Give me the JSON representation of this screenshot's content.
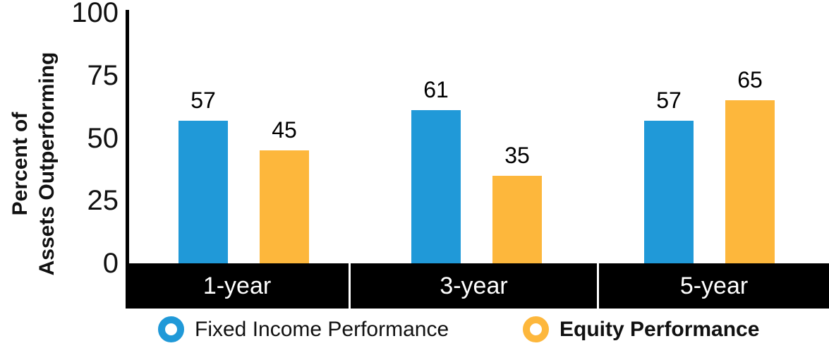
{
  "chart_data": {
    "type": "bar",
    "title": "",
    "categories": [
      "1-year",
      "3-year",
      "5-year"
    ],
    "series": [
      {
        "name": "Fixed Income Performance",
        "values": [
          57,
          61,
          57
        ],
        "color": "#2099D8"
      },
      {
        "name": "Equity Performance",
        "values": [
          45,
          35,
          65
        ],
        "color": "#FDB73C"
      }
    ],
    "ylabel": "Percent of Assets Outperforming",
    "ylabel_lines": [
      "Percent of",
      "Assets Outperforming"
    ],
    "yticks": [
      0,
      25,
      50,
      75,
      100
    ],
    "ylim": [
      0,
      100
    ],
    "xlabel": "",
    "grid": false,
    "legend_position": "bottom",
    "colors": {
      "background": "#ffffff",
      "axis": "#000000",
      "band_background": "#000000",
      "band_text": "#ffffff",
      "text": "#111111"
    }
  }
}
